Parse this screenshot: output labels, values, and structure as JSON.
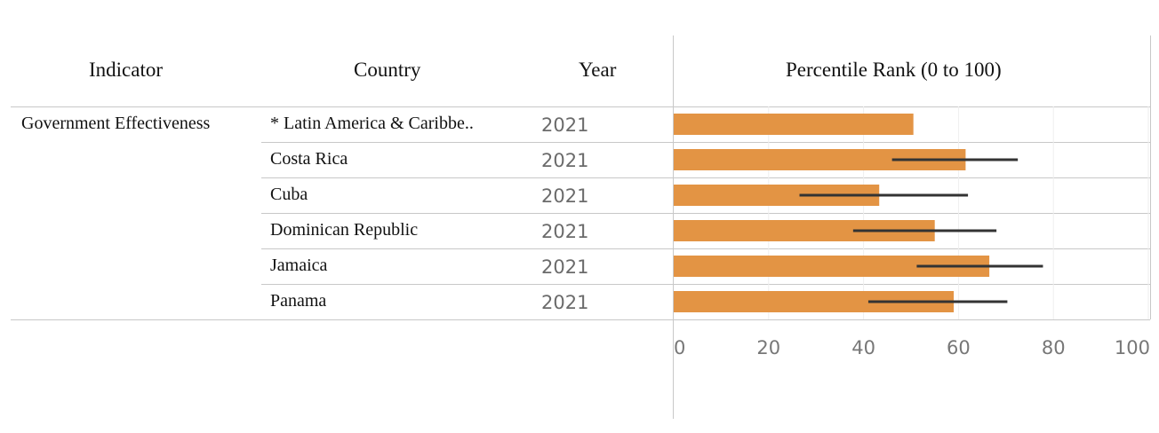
{
  "table": {
    "headers": {
      "indicator": "Indicator",
      "country": "Country",
      "year": "Year",
      "rank": "Percentile Rank (0 to 100)"
    },
    "indicator": "Government Effectiveness",
    "rows": [
      {
        "country": "* Latin America & Caribbe..",
        "year": "2021"
      },
      {
        "country": "Costa Rica",
        "year": "2021"
      },
      {
        "country": "Cuba",
        "year": "2021"
      },
      {
        "country": "Dominican Republic",
        "year": "2021"
      },
      {
        "country": "Jamaica",
        "year": "2021"
      },
      {
        "country": "Panama",
        "year": "2021"
      }
    ]
  },
  "chart_data": {
    "type": "bar",
    "orientation": "horizontal",
    "categories": [
      "* Latin America & Caribbe..",
      "Costa Rica",
      "Cuba",
      "Dominican Republic",
      "Jamaica",
      "Panama"
    ],
    "values": [
      50.5,
      61.5,
      43.3,
      55.0,
      66.5,
      59.0
    ],
    "error_low": [
      null,
      46.0,
      26.5,
      37.8,
      51.2,
      41.0
    ],
    "error_high": [
      null,
      72.5,
      62.0,
      68.0,
      77.8,
      70.3
    ],
    "xlim": [
      0,
      100
    ],
    "xticks": [
      "0",
      "20",
      "40",
      "60",
      "80",
      "100"
    ],
    "grid": true,
    "colors": {
      "bar": "#E39444",
      "error": "#333333",
      "grid": "#eeeeee"
    }
  }
}
